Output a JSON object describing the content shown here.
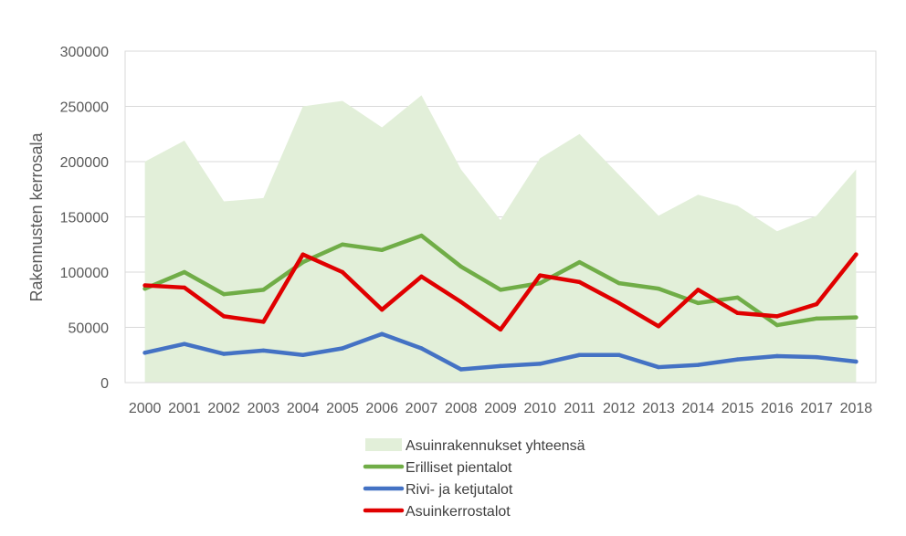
{
  "chart_data": {
    "type": "line",
    "title": "",
    "xlabel": "",
    "ylabel": "Rakennusten kerrosala",
    "ylim": [
      0,
      300000
    ],
    "yticks": [
      0,
      50000,
      100000,
      150000,
      200000,
      250000,
      300000
    ],
    "grid": true,
    "legend_position": "bottom",
    "categories": [
      "2000",
      "2001",
      "2002",
      "2003",
      "2004",
      "2005",
      "2006",
      "2007",
      "2008",
      "2009",
      "2010",
      "2011",
      "2012",
      "2013",
      "2014",
      "2015",
      "2016",
      "2017",
      "2018"
    ],
    "series": [
      {
        "name": "Asuinrakennukset yhteensä",
        "kind": "area",
        "color": "#e2efd9",
        "values": [
          200000,
          219000,
          164000,
          167000,
          250000,
          255000,
          231000,
          260000,
          193000,
          147000,
          203000,
          225000,
          188000,
          151000,
          170000,
          160000,
          137000,
          151000,
          193000
        ]
      },
      {
        "name": "Erilliset pientalot",
        "kind": "line",
        "color": "#70ad47",
        "values": [
          85000,
          100000,
          80000,
          84000,
          109000,
          125000,
          120000,
          133000,
          105000,
          84000,
          90000,
          109000,
          90000,
          85000,
          72000,
          77000,
          52000,
          58000,
          59000
        ]
      },
      {
        "name": "Rivi- ja ketjutalot",
        "kind": "line",
        "color": "#4472c4",
        "values": [
          27000,
          35000,
          26000,
          29000,
          25000,
          31000,
          44000,
          31000,
          12000,
          15000,
          17000,
          25000,
          25000,
          14000,
          16000,
          21000,
          24000,
          23000,
          19000
        ]
      },
      {
        "name": "Asuinkerrostalot",
        "kind": "line",
        "color": "#e00000",
        "values": [
          88000,
          86000,
          60000,
          55000,
          116000,
          100000,
          66000,
          96000,
          73000,
          48000,
          97000,
          91000,
          72000,
          51000,
          84000,
          63000,
          60000,
          71000,
          116000
        ]
      }
    ]
  }
}
